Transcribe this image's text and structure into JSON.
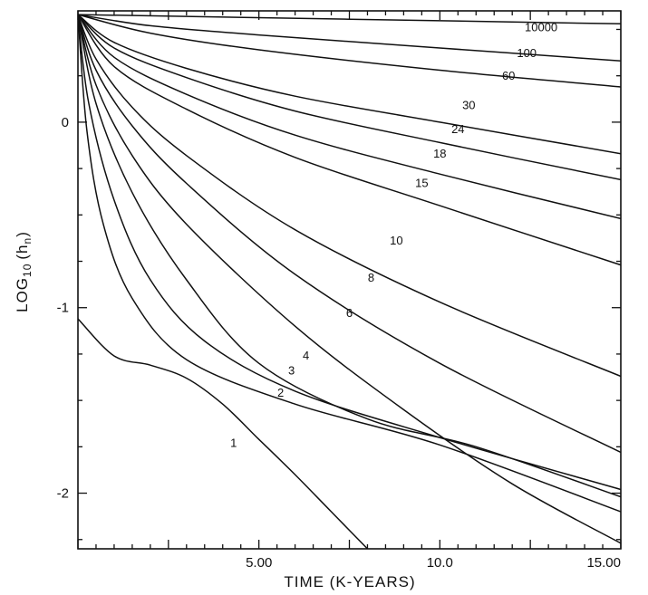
{
  "chart_data": {
    "type": "line",
    "title": "",
    "xlabel": "TIME  (K-YEARS)",
    "ylabel": "LOG",
    "ylabel_sub": "10",
    "ylabel_paren": "(h",
    "ylabel_paren_sub": "n",
    "ylabel_close": ")",
    "xlim": [
      0,
      15
    ],
    "ylim": [
      -2.3,
      0.6
    ],
    "x_tick_labels": [
      {
        "value": 5,
        "text": "5.00"
      },
      {
        "value": 10,
        "text": "10.0"
      },
      {
        "value": 15,
        "text": "15.00"
      }
    ],
    "y_tick_labels": [
      {
        "value": 0,
        "text": "0"
      },
      {
        "value": -1,
        "text": "-1"
      },
      {
        "value": -2,
        "text": "-2"
      }
    ],
    "grid": false,
    "legend": "none",
    "series": [
      {
        "name": "10000",
        "label_at": [
          12.8,
          0.49
        ],
        "points": [
          [
            0,
            0.58
          ],
          [
            15,
            0.53
          ]
        ]
      },
      {
        "name": "100",
        "label_at": [
          12.4,
          0.35
        ],
        "points": [
          [
            0,
            0.58
          ],
          [
            2,
            0.52
          ],
          [
            5,
            0.47
          ],
          [
            10,
            0.4
          ],
          [
            15,
            0.33
          ]
        ]
      },
      {
        "name": "60",
        "label_at": [
          11.9,
          0.23
        ],
        "points": [
          [
            0,
            0.58
          ],
          [
            2,
            0.48
          ],
          [
            5,
            0.39
          ],
          [
            10,
            0.28
          ],
          [
            15,
            0.19
          ]
        ]
      },
      {
        "name": "30",
        "label_at": [
          10.8,
          0.07
        ],
        "points": [
          [
            0,
            0.58
          ],
          [
            1,
            0.43
          ],
          [
            3,
            0.29
          ],
          [
            6,
            0.14
          ],
          [
            10,
            0.0
          ],
          [
            15,
            -0.17
          ]
        ]
      },
      {
        "name": "24",
        "label_at": [
          10.5,
          -0.06
        ],
        "points": [
          [
            0,
            0.58
          ],
          [
            1,
            0.4
          ],
          [
            3,
            0.24
          ],
          [
            6,
            0.06
          ],
          [
            10,
            -0.11
          ],
          [
            15,
            -0.31
          ]
        ]
      },
      {
        "name": "18",
        "label_at": [
          10.0,
          -0.19
        ],
        "points": [
          [
            0,
            0.58
          ],
          [
            1,
            0.35
          ],
          [
            3,
            0.15
          ],
          [
            6,
            -0.07
          ],
          [
            10,
            -0.28
          ],
          [
            15,
            -0.52
          ]
        ]
      },
      {
        "name": "15",
        "label_at": [
          9.5,
          -0.35
        ],
        "points": [
          [
            0,
            0.58
          ],
          [
            1,
            0.3
          ],
          [
            3,
            0.07
          ],
          [
            6,
            -0.19
          ],
          [
            10,
            -0.45
          ],
          [
            15,
            -0.77
          ]
        ]
      },
      {
        "name": "10",
        "label_at": [
          8.8,
          -0.66
        ],
        "points": [
          [
            0,
            0.58
          ],
          [
            0.5,
            0.34
          ],
          [
            1.5,
            0.08
          ],
          [
            3,
            -0.18
          ],
          [
            6,
            -0.58
          ],
          [
            10,
            -0.97
          ],
          [
            15,
            -1.37
          ]
        ]
      },
      {
        "name": "8",
        "label_at": [
          8.1,
          -0.86
        ],
        "points": [
          [
            0,
            0.58
          ],
          [
            0.5,
            0.28
          ],
          [
            1.5,
            -0.02
          ],
          [
            3,
            -0.33
          ],
          [
            6,
            -0.82
          ],
          [
            10,
            -1.3
          ],
          [
            15,
            -1.78
          ]
        ]
      },
      {
        "name": "6",
        "label_at": [
          7.5,
          -1.05
        ],
        "points": [
          [
            0,
            0.58
          ],
          [
            0.5,
            0.2
          ],
          [
            1.5,
            -0.18
          ],
          [
            3,
            -0.55
          ],
          [
            6,
            -1.1
          ],
          [
            9,
            -1.55
          ],
          [
            12,
            -1.95
          ],
          [
            15,
            -2.27
          ]
        ]
      },
      {
        "name": "4",
        "label_at": [
          6.3,
          -1.28
        ],
        "points": [
          [
            0,
            0.58
          ],
          [
            0.5,
            0.1
          ],
          [
            1.5,
            -0.38
          ],
          [
            3,
            -0.85
          ],
          [
            5,
            -1.3
          ],
          [
            8,
            -1.6
          ],
          [
            11,
            -1.75
          ],
          [
            15,
            -2.02
          ]
        ]
      },
      {
        "name": "3",
        "label_at": [
          5.9,
          -1.36
        ],
        "points": [
          [
            0,
            0.58
          ],
          [
            0.3,
            0.1
          ],
          [
            1,
            -0.42
          ],
          [
            2,
            -0.85
          ],
          [
            3.5,
            -1.18
          ],
          [
            6,
            -1.45
          ],
          [
            10,
            -1.7
          ],
          [
            15,
            -1.98
          ]
        ]
      },
      {
        "name": "2",
        "label_at": [
          5.6,
          -1.48
        ],
        "points": [
          [
            0,
            0.58
          ],
          [
            0.25,
            -0.05
          ],
          [
            0.7,
            -0.55
          ],
          [
            1.5,
            -0.95
          ],
          [
            3,
            -1.28
          ],
          [
            6,
            -1.52
          ],
          [
            10,
            -1.74
          ],
          [
            15,
            -2.1
          ]
        ]
      },
      {
        "name": "1",
        "label_at": [
          4.3,
          -1.75
        ],
        "points": [
          [
            0,
            -1.06
          ],
          [
            1,
            -1.26
          ],
          [
            2,
            -1.31
          ],
          [
            3,
            -1.38
          ],
          [
            4,
            -1.52
          ],
          [
            5,
            -1.71
          ],
          [
            6,
            -1.9
          ],
          [
            7,
            -2.1
          ],
          [
            8,
            -2.3
          ]
        ]
      }
    ]
  }
}
